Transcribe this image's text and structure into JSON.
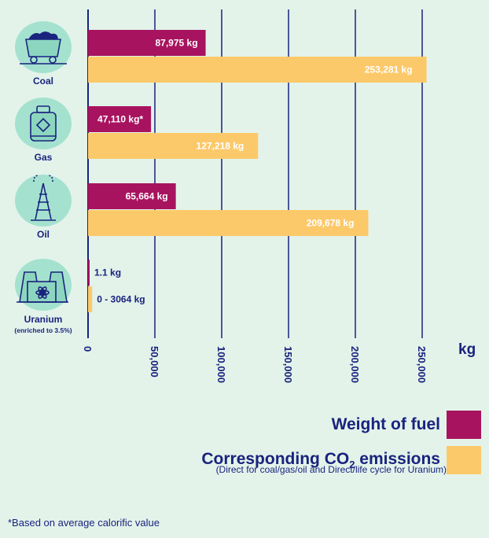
{
  "chart_data": {
    "type": "bar",
    "orientation": "horizontal",
    "categories": [
      "Coal",
      "Gas",
      "Oil",
      "Uranium"
    ],
    "category_sublabels": [
      "",
      "",
      "",
      "(enriched to 3.5%)"
    ],
    "icons": [
      "coal-cart-icon",
      "gas-cylinder-icon",
      "oil-rig-icon",
      "nuclear-plant-icon"
    ],
    "series": [
      {
        "name": "Weight of fuel",
        "color": "#a8135f",
        "values": [
          87975,
          47110,
          65664,
          1.1
        ],
        "labels": [
          "87,975 kg",
          "47,110 kg*",
          "65,664 kg",
          "1.1 kg"
        ]
      },
      {
        "name": "Corresponding CO2 emissions",
        "color": "#fcc96a",
        "values": [
          253281,
          127218,
          209678,
          3064
        ],
        "labels": [
          "253,281 kg",
          "127,218 kg",
          "209,678 kg",
          "0 - 3064 kg"
        ]
      }
    ],
    "xticks": [
      0,
      50000,
      100000,
      150000,
      200000,
      250000
    ],
    "xtick_labels": [
      "0",
      "50,000",
      "100,000",
      "150,000",
      "200,000",
      "250,000"
    ],
    "xlim": [
      0,
      300000
    ],
    "unit": "kg",
    "grid": true
  },
  "legend": {
    "weight_label": "Weight of fuel",
    "co2_label_main": "Corresponding CO",
    "co2_label_sub": "2",
    "co2_label_end": " emissions",
    "co2_note": "(Direct for coal/gas/oil and Direct/life cycle for Uranium)"
  },
  "footnote": "*Based on average calorific value"
}
